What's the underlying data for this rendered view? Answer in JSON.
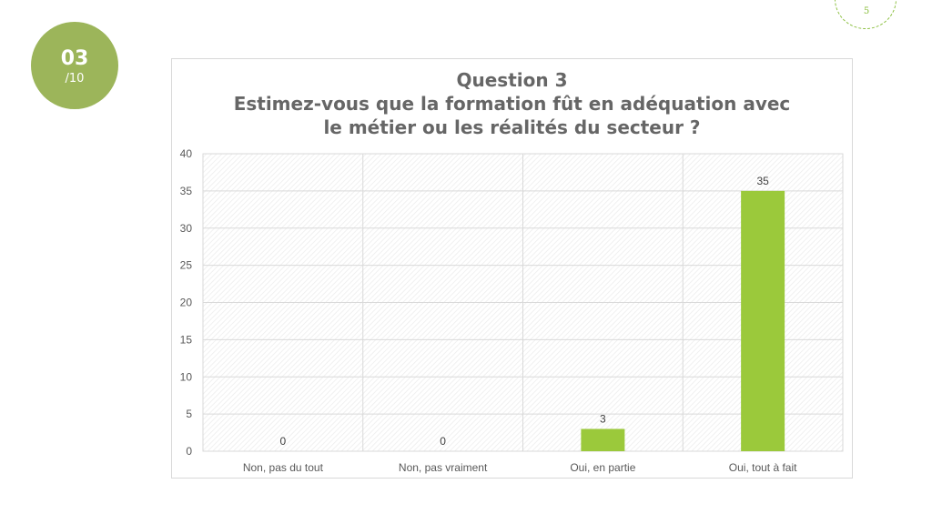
{
  "badge": {
    "number": "03",
    "total": "/10"
  },
  "page_number": "5",
  "colors": {
    "badge": "#9cb55a",
    "bar": "#9bc93b",
    "page_circle": "#8bbf3f",
    "title": "#666666"
  },
  "chart_data": {
    "type": "bar",
    "title_lines": [
      "Question 3",
      "Estimez-vous que la formation fût en adéquation avec",
      "le métier ou les réalités du secteur ?"
    ],
    "categories": [
      "Non, pas du tout",
      "Non, pas vraiment",
      "Oui, en partie",
      "Oui, tout à fait"
    ],
    "values": [
      0,
      0,
      3,
      35
    ],
    "data_labels": [
      "0",
      "0",
      "3",
      "35"
    ],
    "ylim": [
      0,
      40
    ],
    "yticks": [
      0,
      5,
      10,
      15,
      20,
      25,
      30,
      35,
      40
    ],
    "grid": true,
    "legend": "none"
  }
}
